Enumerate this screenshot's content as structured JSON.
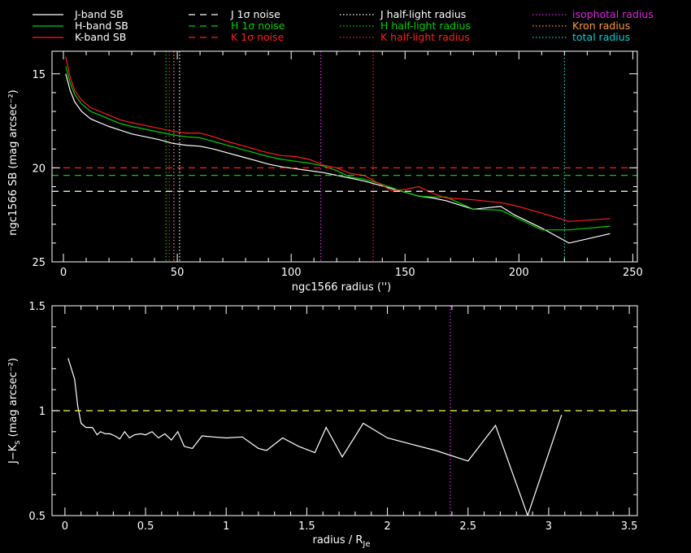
{
  "colors": {
    "background": "#000000",
    "axes": "#ffffff",
    "J": "#ffffff",
    "H": "#00d000",
    "K": "#ff1c1c",
    "isophotal": "#dd22dd",
    "kron": "#ff9a3a",
    "total": "#00d2d2",
    "color_ref": "#ffff33"
  },
  "legend": {
    "col1": [
      {
        "label": "J-band SB",
        "color": "#ffffff",
        "style": "solid"
      },
      {
        "label": "H-band SB",
        "color": "#00d000",
        "style": "solid"
      },
      {
        "label": "K-band SB",
        "color": "#ff1c1c",
        "style": "solid"
      }
    ],
    "col2": [
      {
        "label": "J 1σ noise",
        "color": "#ffffff",
        "style": "dashed"
      },
      {
        "label": "H 1σ noise",
        "color": "#00d000",
        "style": "dashed"
      },
      {
        "label": "K 1σ noise",
        "color": "#ff1c1c",
        "style": "dashed"
      }
    ],
    "col3": [
      {
        "label": "J half-light radius",
        "color": "#ffffff",
        "style": "dotted"
      },
      {
        "label": "H half-light radius",
        "color": "#00d000",
        "style": "dotted"
      },
      {
        "label": "K half-light radius",
        "color": "#ff1c1c",
        "style": "dotted"
      }
    ],
    "col4": [
      {
        "label": "isophotal radius",
        "color": "#dd22dd",
        "style": "dotted"
      },
      {
        "label": "Kron radius",
        "color": "#ff9a3a",
        "style": "dotted"
      },
      {
        "label": "total radius",
        "color": "#00d2d2",
        "style": "dotted"
      }
    ]
  },
  "chart_data": [
    {
      "type": "line",
      "xlabel": "ngc1566 radius ('')",
      "ylabel": "ngc1566 SB (mag arcsec⁻²)",
      "xlim": [
        -5,
        252
      ],
      "ylim": [
        25,
        13.8
      ],
      "inverted_y": true,
      "xticks": [
        0,
        50,
        100,
        150,
        200,
        250
      ],
      "yticks": [
        15,
        20,
        25
      ],
      "series": [
        {
          "name": "J-band SB",
          "color": "#ffffff",
          "x": [
            1,
            3,
            5,
            8,
            12,
            16,
            20,
            25,
            30,
            36,
            42,
            48,
            54,
            60,
            66,
            72,
            78,
            84,
            90,
            96,
            102,
            108,
            114,
            120,
            126,
            132,
            138,
            144,
            150,
            156,
            162,
            168,
            180,
            192,
            198,
            210,
            222,
            240
          ],
          "y": [
            15.0,
            15.9,
            16.5,
            17.0,
            17.4,
            17.6,
            17.8,
            18.0,
            18.2,
            18.35,
            18.5,
            18.7,
            18.8,
            18.85,
            19.0,
            19.2,
            19.4,
            19.6,
            19.8,
            19.95,
            20.05,
            20.15,
            20.25,
            20.4,
            20.55,
            20.7,
            20.9,
            21.1,
            21.3,
            21.5,
            21.6,
            21.75,
            22.2,
            22.05,
            22.5,
            23.2,
            24.0,
            23.5
          ]
        },
        {
          "name": "H-band SB",
          "color": "#00d000",
          "x": [
            1,
            3,
            5,
            8,
            12,
            16,
            20,
            25,
            30,
            36,
            42,
            48,
            54,
            60,
            66,
            72,
            78,
            84,
            90,
            96,
            102,
            108,
            114,
            120,
            126,
            132,
            138,
            144,
            150,
            156,
            162,
            168,
            180,
            192,
            198,
            210,
            222,
            240
          ],
          "y": [
            14.6,
            15.5,
            16.1,
            16.6,
            17.0,
            17.2,
            17.4,
            17.65,
            17.8,
            17.95,
            18.1,
            18.25,
            18.35,
            18.4,
            18.6,
            18.8,
            19.0,
            19.2,
            19.4,
            19.55,
            19.65,
            19.75,
            19.9,
            20.15,
            20.5,
            20.6,
            20.8,
            21.05,
            21.3,
            21.5,
            21.55,
            21.55,
            22.2,
            22.25,
            22.6,
            23.3,
            23.3,
            23.1
          ]
        },
        {
          "name": "K-band SB",
          "color": "#ff1c1c",
          "x": [
            1,
            3,
            5,
            8,
            12,
            16,
            20,
            25,
            30,
            36,
            42,
            48,
            54,
            60,
            66,
            72,
            78,
            84,
            90,
            96,
            102,
            108,
            114,
            120,
            126,
            132,
            138,
            144,
            150,
            156,
            162,
            168,
            180,
            192,
            198,
            210,
            222,
            240
          ],
          "y": [
            14.1,
            15.2,
            15.9,
            16.4,
            16.8,
            17.0,
            17.2,
            17.45,
            17.6,
            17.75,
            17.9,
            18.05,
            18.15,
            18.15,
            18.35,
            18.6,
            18.8,
            19.0,
            19.2,
            19.35,
            19.4,
            19.55,
            19.85,
            20.0,
            20.3,
            20.4,
            20.8,
            21.2,
            21.15,
            21.0,
            21.35,
            21.6,
            21.7,
            21.85,
            22.0,
            22.4,
            22.85,
            22.7
          ]
        },
        {
          "name": "J 1σ noise",
          "color": "#ffffff",
          "style": "dashed",
          "y_const": 21.25
        },
        {
          "name": "H 1σ noise",
          "color": "#00d000",
          "style": "dashed",
          "y_const": 20.4
        },
        {
          "name": "K 1σ noise",
          "color": "#ff1c1c",
          "style": "dashed",
          "y_const": 20.0
        }
      ],
      "vlines": [
        {
          "name": "J half-light radius",
          "color": "#ffffff",
          "x": 51
        },
        {
          "name": "H half-light radius",
          "color": "#00d000",
          "x": 45
        },
        {
          "name": "K half-light radius",
          "color": "#ff1c1c",
          "x": 46.5
        },
        {
          "name": "Kron radius",
          "color": "#ff9a3a",
          "x": 48.5
        },
        {
          "name": "isophotal radius",
          "color": "#dd22dd",
          "x": 113
        },
        {
          "name": "K half-light radius (outer)",
          "color": "#ff1c1c",
          "x": 136
        },
        {
          "name": "total radius",
          "color": "#00d2d2",
          "x": 220
        }
      ]
    },
    {
      "type": "line",
      "xlabel": "radius / R",
      "xlabel_sub": "Je",
      "ylabel": "J−K",
      "ylabel_sub": "s",
      "ylabel_unit": " (mag arcsec⁻²)",
      "xlim": [
        -0.08,
        3.55
      ],
      "ylim": [
        0.5,
        1.5
      ],
      "xticks": [
        0,
        0.5,
        1,
        1.5,
        2,
        2.5,
        3,
        3.5
      ],
      "yticks": [
        0.5,
        1,
        1.5
      ],
      "ytick_labels": [
        "0.5",
        "1",
        "1.5"
      ],
      "xtick_labels": [
        "0",
        "0.5",
        "1",
        "1.5",
        "2",
        "2.5",
        "3",
        "3.5"
      ],
      "series": [
        {
          "name": "J−Ks",
          "color": "#ffffff",
          "x": [
            0.02,
            0.06,
            0.08,
            0.1,
            0.13,
            0.17,
            0.2,
            0.22,
            0.25,
            0.28,
            0.31,
            0.34,
            0.37,
            0.4,
            0.43,
            0.47,
            0.5,
            0.54,
            0.58,
            0.62,
            0.66,
            0.7,
            0.74,
            0.79,
            0.85,
            0.92,
            1.0,
            1.1,
            1.2,
            1.25,
            1.35,
            1.45,
            1.55,
            1.62,
            1.72,
            1.85,
            2.0,
            2.15,
            2.3,
            2.5,
            2.67,
            2.87,
            3.08
          ],
          "y": [
            1.25,
            1.15,
            1.02,
            0.94,
            0.92,
            0.92,
            0.885,
            0.9,
            0.89,
            0.89,
            0.88,
            0.865,
            0.9,
            0.87,
            0.885,
            0.89,
            0.885,
            0.9,
            0.87,
            0.89,
            0.86,
            0.9,
            0.83,
            0.82,
            0.88,
            0.875,
            0.87,
            0.875,
            0.82,
            0.81,
            0.87,
            0.83,
            0.8,
            0.92,
            0.78,
            0.94,
            0.87,
            0.84,
            0.81,
            0.76,
            0.93,
            0.5,
            0.98
          ]
        },
        {
          "name": "J−Ks reference",
          "color": "#ffff33",
          "style": "dashed",
          "y_const": 1.0
        }
      ],
      "vlines": [
        {
          "name": "isophotal radius",
          "color": "#dd22dd",
          "x": 2.39
        }
      ]
    }
  ]
}
